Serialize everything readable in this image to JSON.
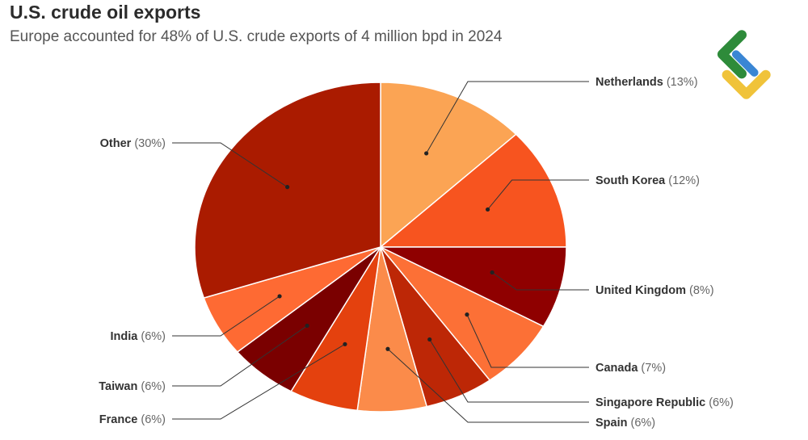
{
  "header": {
    "title": "U.S. crude oil exports",
    "subtitle": "Europe accounted for 48% of U.S. crude exports of 4 million bpd in 2024"
  },
  "chart_data": {
    "type": "pie",
    "title": "U.S. crude oil exports",
    "subtitle": "Europe accounted for 48% of U.S. crude exports of 4 million bpd in 2024",
    "start": "12 o'clock",
    "direction": "clockwise",
    "slices": [
      {
        "label": "Netherlands",
        "value": 13,
        "pct_text": "(13%)",
        "color": "#fba454"
      },
      {
        "label": "South Korea",
        "value": 12,
        "pct_text": "(12%)",
        "color": "#f7541f"
      },
      {
        "label": "United Kingdom",
        "value": 8,
        "pct_text": "(8%)",
        "color": "#8f0000"
      },
      {
        "label": "Canada",
        "value": 7,
        "pct_text": "(7%)",
        "color": "#fc7036"
      },
      {
        "label": "Singapore Republic",
        "value": 6,
        "pct_text": "(6%)",
        "color": "#bd2706"
      },
      {
        "label": "Spain",
        "value": 6,
        "pct_text": "(6%)",
        "color": "#fb8b4a"
      },
      {
        "label": "France",
        "value": 6,
        "pct_text": "(6%)",
        "color": "#e4410e"
      },
      {
        "label": "Taiwan",
        "value": 6,
        "pct_text": "(6%)",
        "color": "#7a0000"
      },
      {
        "label": "India",
        "value": 6,
        "pct_text": "(6%)",
        "color": "#fe6a33"
      },
      {
        "label": "Other",
        "value": 30,
        "pct_text": "(30%)",
        "color": "#aa1b00"
      }
    ]
  },
  "logo": {
    "colors": [
      "#2e8b3a",
      "#3a86d4",
      "#f0c33a"
    ]
  }
}
